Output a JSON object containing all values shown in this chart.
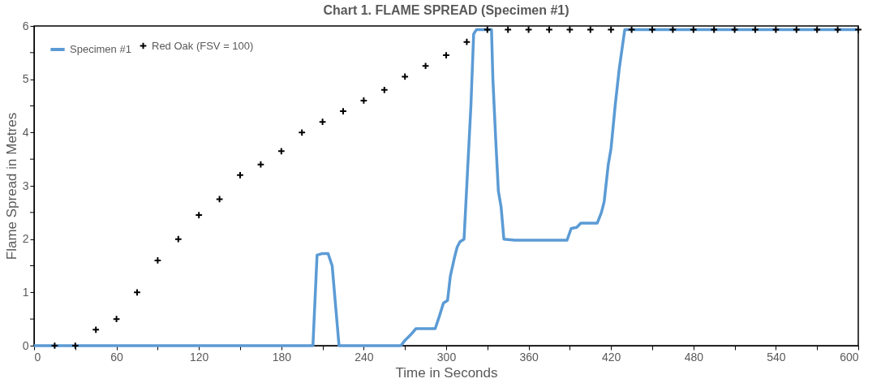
{
  "chart_data": {
    "type": "line",
    "title": "Chart 1. FLAME SPREAD (Specimen #1)",
    "xlabel": "Time in Seconds",
    "ylabel": "Flame Spread in Metres",
    "xlim": [
      0,
      600
    ],
    "xticks": [
      0,
      {
        "value": 30,
        "label": null
      },
      60,
      {
        "value": 90,
        "label": null
      },
      120,
      {
        "value": 150,
        "label": null
      },
      180,
      {
        "value": 210,
        "label": null
      },
      240,
      {
        "value": 270,
        "label": null
      },
      300,
      {
        "value": 330,
        "label": null
      },
      360,
      {
        "value": 390,
        "label": null
      },
      420,
      {
        "value": 450,
        "label": null
      },
      480,
      {
        "value": 510,
        "label": null
      },
      540,
      {
        "value": 570,
        "label": null
      },
      600
    ],
    "ylim": [
      0,
      6
    ],
    "yticks": [
      0,
      {
        "value": 0.5,
        "label": null
      },
      1,
      {
        "value": 1.5,
        "label": null
      },
      2,
      {
        "value": 2.5,
        "label": null
      },
      3,
      {
        "value": 3.5,
        "label": null
      },
      4,
      {
        "value": 4.5,
        "label": null
      },
      5,
      {
        "value": 5.5,
        "label": null
      },
      6
    ],
    "grid": false,
    "legend": "top left",
    "series": [
      {
        "name": "Specimen #1",
        "color": "#5b9bd5",
        "marker": "none",
        "line_style": "solid",
        "x": [
          0,
          203,
          206,
          210,
          214,
          217,
          222,
          267,
          270,
          274,
          278,
          292,
          295,
          298,
          301,
          303,
          306,
          308,
          310,
          313,
          315,
          318,
          320,
          322,
          333,
          334,
          336,
          338,
          340,
          342,
          350,
          388,
          391,
          395,
          398,
          410,
          413,
          415,
          418,
          420,
          423,
          426,
          430,
          600
        ],
        "values": [
          0,
          0,
          1.7,
          1.73,
          1.73,
          1.5,
          0,
          0,
          0.1,
          0.2,
          0.32,
          0.32,
          0.55,
          0.8,
          0.85,
          1.3,
          1.65,
          1.85,
          1.95,
          2.0,
          3.0,
          4.5,
          5.85,
          5.93,
          5.93,
          5.0,
          3.9,
          2.9,
          2.6,
          2.0,
          1.98,
          1.98,
          2.2,
          2.22,
          2.3,
          2.3,
          2.5,
          2.7,
          3.4,
          3.7,
          4.5,
          5.2,
          5.93,
          5.93
        ]
      },
      {
        "name": "Red Oak (FSV = 100)",
        "type": "scatter",
        "color": "#000000",
        "marker": "cross",
        "x": [
          15,
          30,
          45,
          60,
          75,
          90,
          105,
          120,
          135,
          150,
          165,
          180,
          195,
          210,
          225,
          240,
          255,
          270,
          285,
          300,
          315,
          330,
          345,
          360,
          375,
          390,
          405,
          420,
          435,
          450,
          465,
          480,
          495,
          510,
          525,
          540,
          555,
          570,
          585,
          600
        ],
        "values": [
          0,
          0,
          0.3,
          0.5,
          1.0,
          1.6,
          2.0,
          2.45,
          2.75,
          3.2,
          3.4,
          3.65,
          4.0,
          4.2,
          4.4,
          4.6,
          4.8,
          5.05,
          5.25,
          5.45,
          5.7,
          5.93,
          5.93,
          5.93,
          5.93,
          5.93,
          5.93,
          5.93,
          5.93,
          5.93,
          5.93,
          5.93,
          5.93,
          5.93,
          5.93,
          5.93,
          5.93,
          5.93,
          5.93,
          5.93
        ]
      }
    ]
  }
}
